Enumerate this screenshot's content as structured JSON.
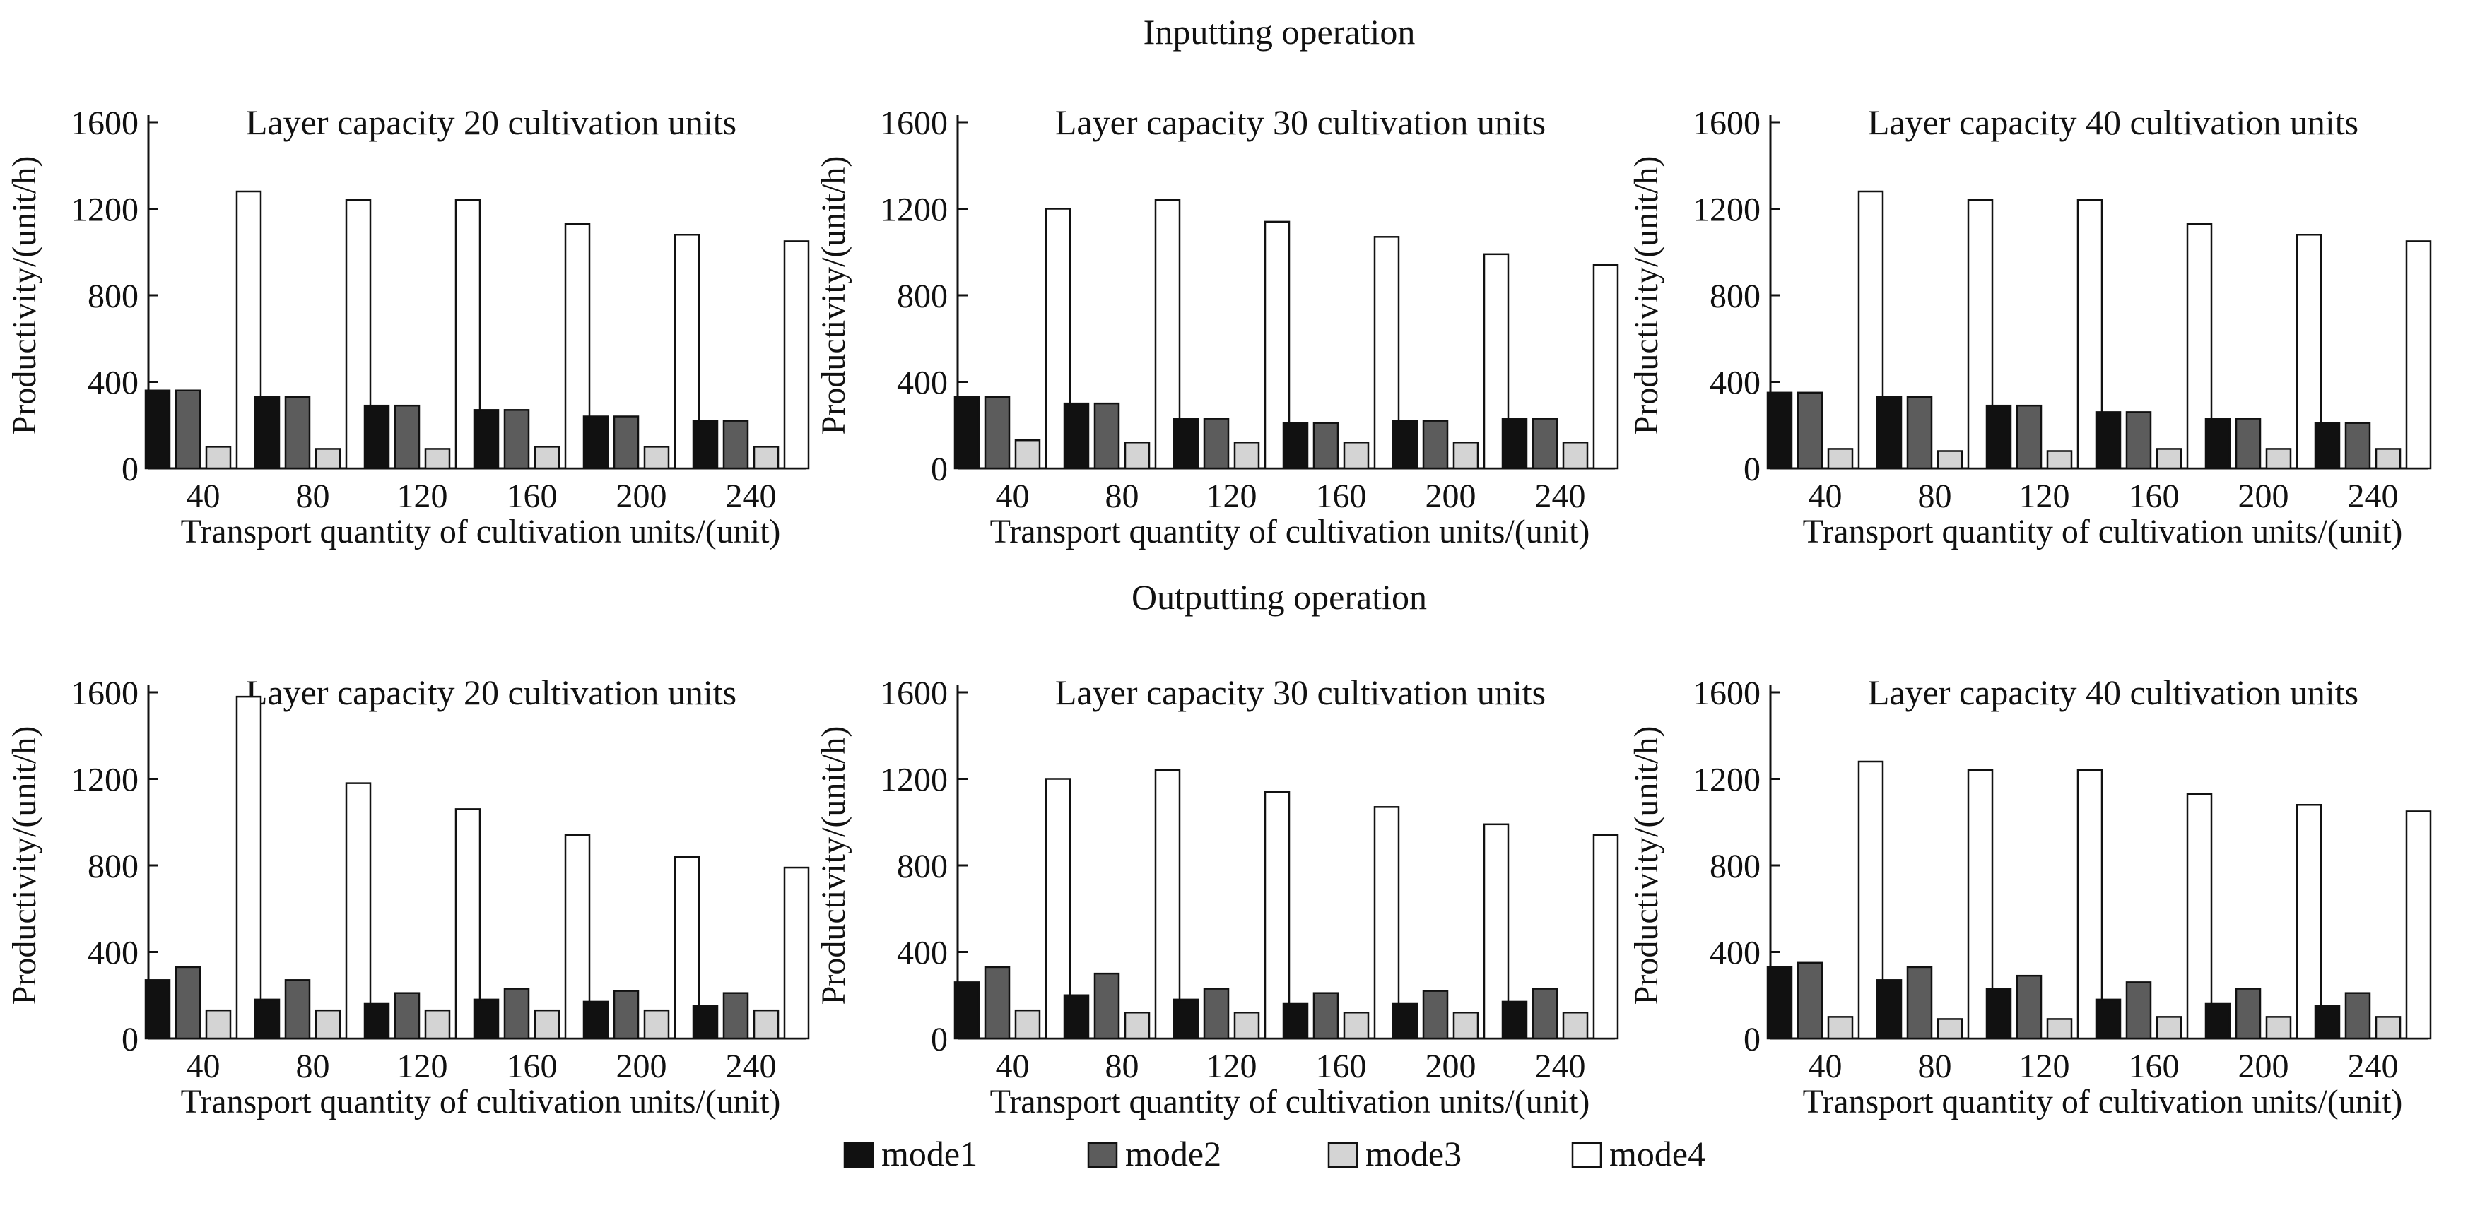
{
  "figure": {
    "section_titles": [
      "Inputting operation",
      "Outputting operation"
    ],
    "legend": [
      {
        "label": "mode1",
        "color": "#111111"
      },
      {
        "label": "mode2",
        "color": "#5c5c5c"
      },
      {
        "label": "mode3",
        "color": "#d4d4d4"
      },
      {
        "label": "mode4",
        "color": "#ffffff"
      }
    ]
  },
  "chart_data": [
    {
      "type": "bar",
      "section": "Inputting operation",
      "title": "Layer capacity 20 cultivation units",
      "xlabel": "Transport quantity of cultivation units/(unit)",
      "ylabel": "Productivity/(unit/h)",
      "ylim": [
        0,
        1600
      ],
      "yticks": [
        0,
        400,
        800,
        1200,
        1600
      ],
      "categories": [
        "40",
        "80",
        "120",
        "160",
        "200",
        "240"
      ],
      "series": [
        {
          "name": "mode1",
          "values": [
            360,
            330,
            290,
            270,
            240,
            220
          ]
        },
        {
          "name": "mode2",
          "values": [
            360,
            330,
            290,
            270,
            240,
            220
          ]
        },
        {
          "name": "mode3",
          "values": [
            100,
            90,
            90,
            100,
            100,
            100
          ]
        },
        {
          "name": "mode4",
          "values": [
            1280,
            1240,
            1240,
            1130,
            1080,
            1050
          ]
        }
      ]
    },
    {
      "type": "bar",
      "section": "Inputting operation",
      "title": "Layer capacity 30 cultivation units",
      "xlabel": "Transport quantity of cultivation units/(unit)",
      "ylabel": "Productivity/(unit/h)",
      "ylim": [
        0,
        1600
      ],
      "yticks": [
        0,
        400,
        800,
        1200,
        1600
      ],
      "categories": [
        "40",
        "80",
        "120",
        "160",
        "200",
        "240"
      ],
      "series": [
        {
          "name": "mode1",
          "values": [
            330,
            300,
            230,
            210,
            220,
            230
          ]
        },
        {
          "name": "mode2",
          "values": [
            330,
            300,
            230,
            210,
            220,
            230
          ]
        },
        {
          "name": "mode3",
          "values": [
            130,
            120,
            120,
            120,
            120,
            120
          ]
        },
        {
          "name": "mode4",
          "values": [
            1200,
            1240,
            1140,
            1070,
            990,
            940
          ]
        }
      ]
    },
    {
      "type": "bar",
      "section": "Inputting operation",
      "title": "Layer capacity 40 cultivation units",
      "xlabel": "Transport quantity of cultivation units/(unit)",
      "ylabel": "Productivity/(unit/h)",
      "ylim": [
        0,
        1600
      ],
      "yticks": [
        0,
        400,
        800,
        1200,
        1600
      ],
      "categories": [
        "40",
        "80",
        "120",
        "160",
        "200",
        "240"
      ],
      "series": [
        {
          "name": "mode1",
          "values": [
            350,
            330,
            290,
            260,
            230,
            210
          ]
        },
        {
          "name": "mode2",
          "values": [
            350,
            330,
            290,
            260,
            230,
            210
          ]
        },
        {
          "name": "mode3",
          "values": [
            90,
            80,
            80,
            90,
            90,
            90
          ]
        },
        {
          "name": "mode4",
          "values": [
            1280,
            1240,
            1240,
            1130,
            1080,
            1050
          ]
        }
      ]
    },
    {
      "type": "bar",
      "section": "Outputting operation",
      "title": "Layer capacity 20 cultivation units",
      "xlabel": "Transport quantity of cultivation units/(unit)",
      "ylabel": "Productivity/(unit/h)",
      "ylim": [
        0,
        1600
      ],
      "yticks": [
        0,
        400,
        800,
        1200,
        1600
      ],
      "categories": [
        "40",
        "80",
        "120",
        "160",
        "200",
        "240"
      ],
      "series": [
        {
          "name": "mode1",
          "values": [
            270,
            180,
            160,
            180,
            170,
            150
          ]
        },
        {
          "name": "mode2",
          "values": [
            330,
            270,
            210,
            230,
            220,
            210
          ]
        },
        {
          "name": "mode3",
          "values": [
            130,
            130,
            130,
            130,
            130,
            130
          ]
        },
        {
          "name": "mode4",
          "values": [
            1580,
            1180,
            1060,
            940,
            840,
            790
          ]
        }
      ]
    },
    {
      "type": "bar",
      "section": "Outputting operation",
      "title": "Layer capacity 30 cultivation units",
      "xlabel": "Transport quantity of cultivation units/(unit)",
      "ylabel": "Productivity/(unit/h)",
      "ylim": [
        0,
        1600
      ],
      "yticks": [
        0,
        400,
        800,
        1200,
        1600
      ],
      "categories": [
        "40",
        "80",
        "120",
        "160",
        "200",
        "240"
      ],
      "series": [
        {
          "name": "mode1",
          "values": [
            260,
            200,
            180,
            160,
            160,
            170
          ]
        },
        {
          "name": "mode2",
          "values": [
            330,
            300,
            230,
            210,
            220,
            230
          ]
        },
        {
          "name": "mode3",
          "values": [
            130,
            120,
            120,
            120,
            120,
            120
          ]
        },
        {
          "name": "mode4",
          "values": [
            1200,
            1240,
            1140,
            1070,
            990,
            940
          ]
        }
      ]
    },
    {
      "type": "bar",
      "section": "Outputting operation",
      "title": "Layer capacity 40 cultivation units",
      "xlabel": "Transport quantity of cultivation units/(unit)",
      "ylabel": "Productivity/(unit/h)",
      "ylim": [
        0,
        1600
      ],
      "yticks": [
        0,
        400,
        800,
        1200,
        1600
      ],
      "categories": [
        "40",
        "80",
        "120",
        "160",
        "200",
        "240"
      ],
      "series": [
        {
          "name": "mode1",
          "values": [
            330,
            270,
            230,
            180,
            160,
            150
          ]
        },
        {
          "name": "mode2",
          "values": [
            350,
            330,
            290,
            260,
            230,
            210
          ]
        },
        {
          "name": "mode3",
          "values": [
            100,
            90,
            90,
            100,
            100,
            100
          ]
        },
        {
          "name": "mode4",
          "values": [
            1280,
            1240,
            1240,
            1130,
            1080,
            1050
          ]
        }
      ]
    }
  ]
}
